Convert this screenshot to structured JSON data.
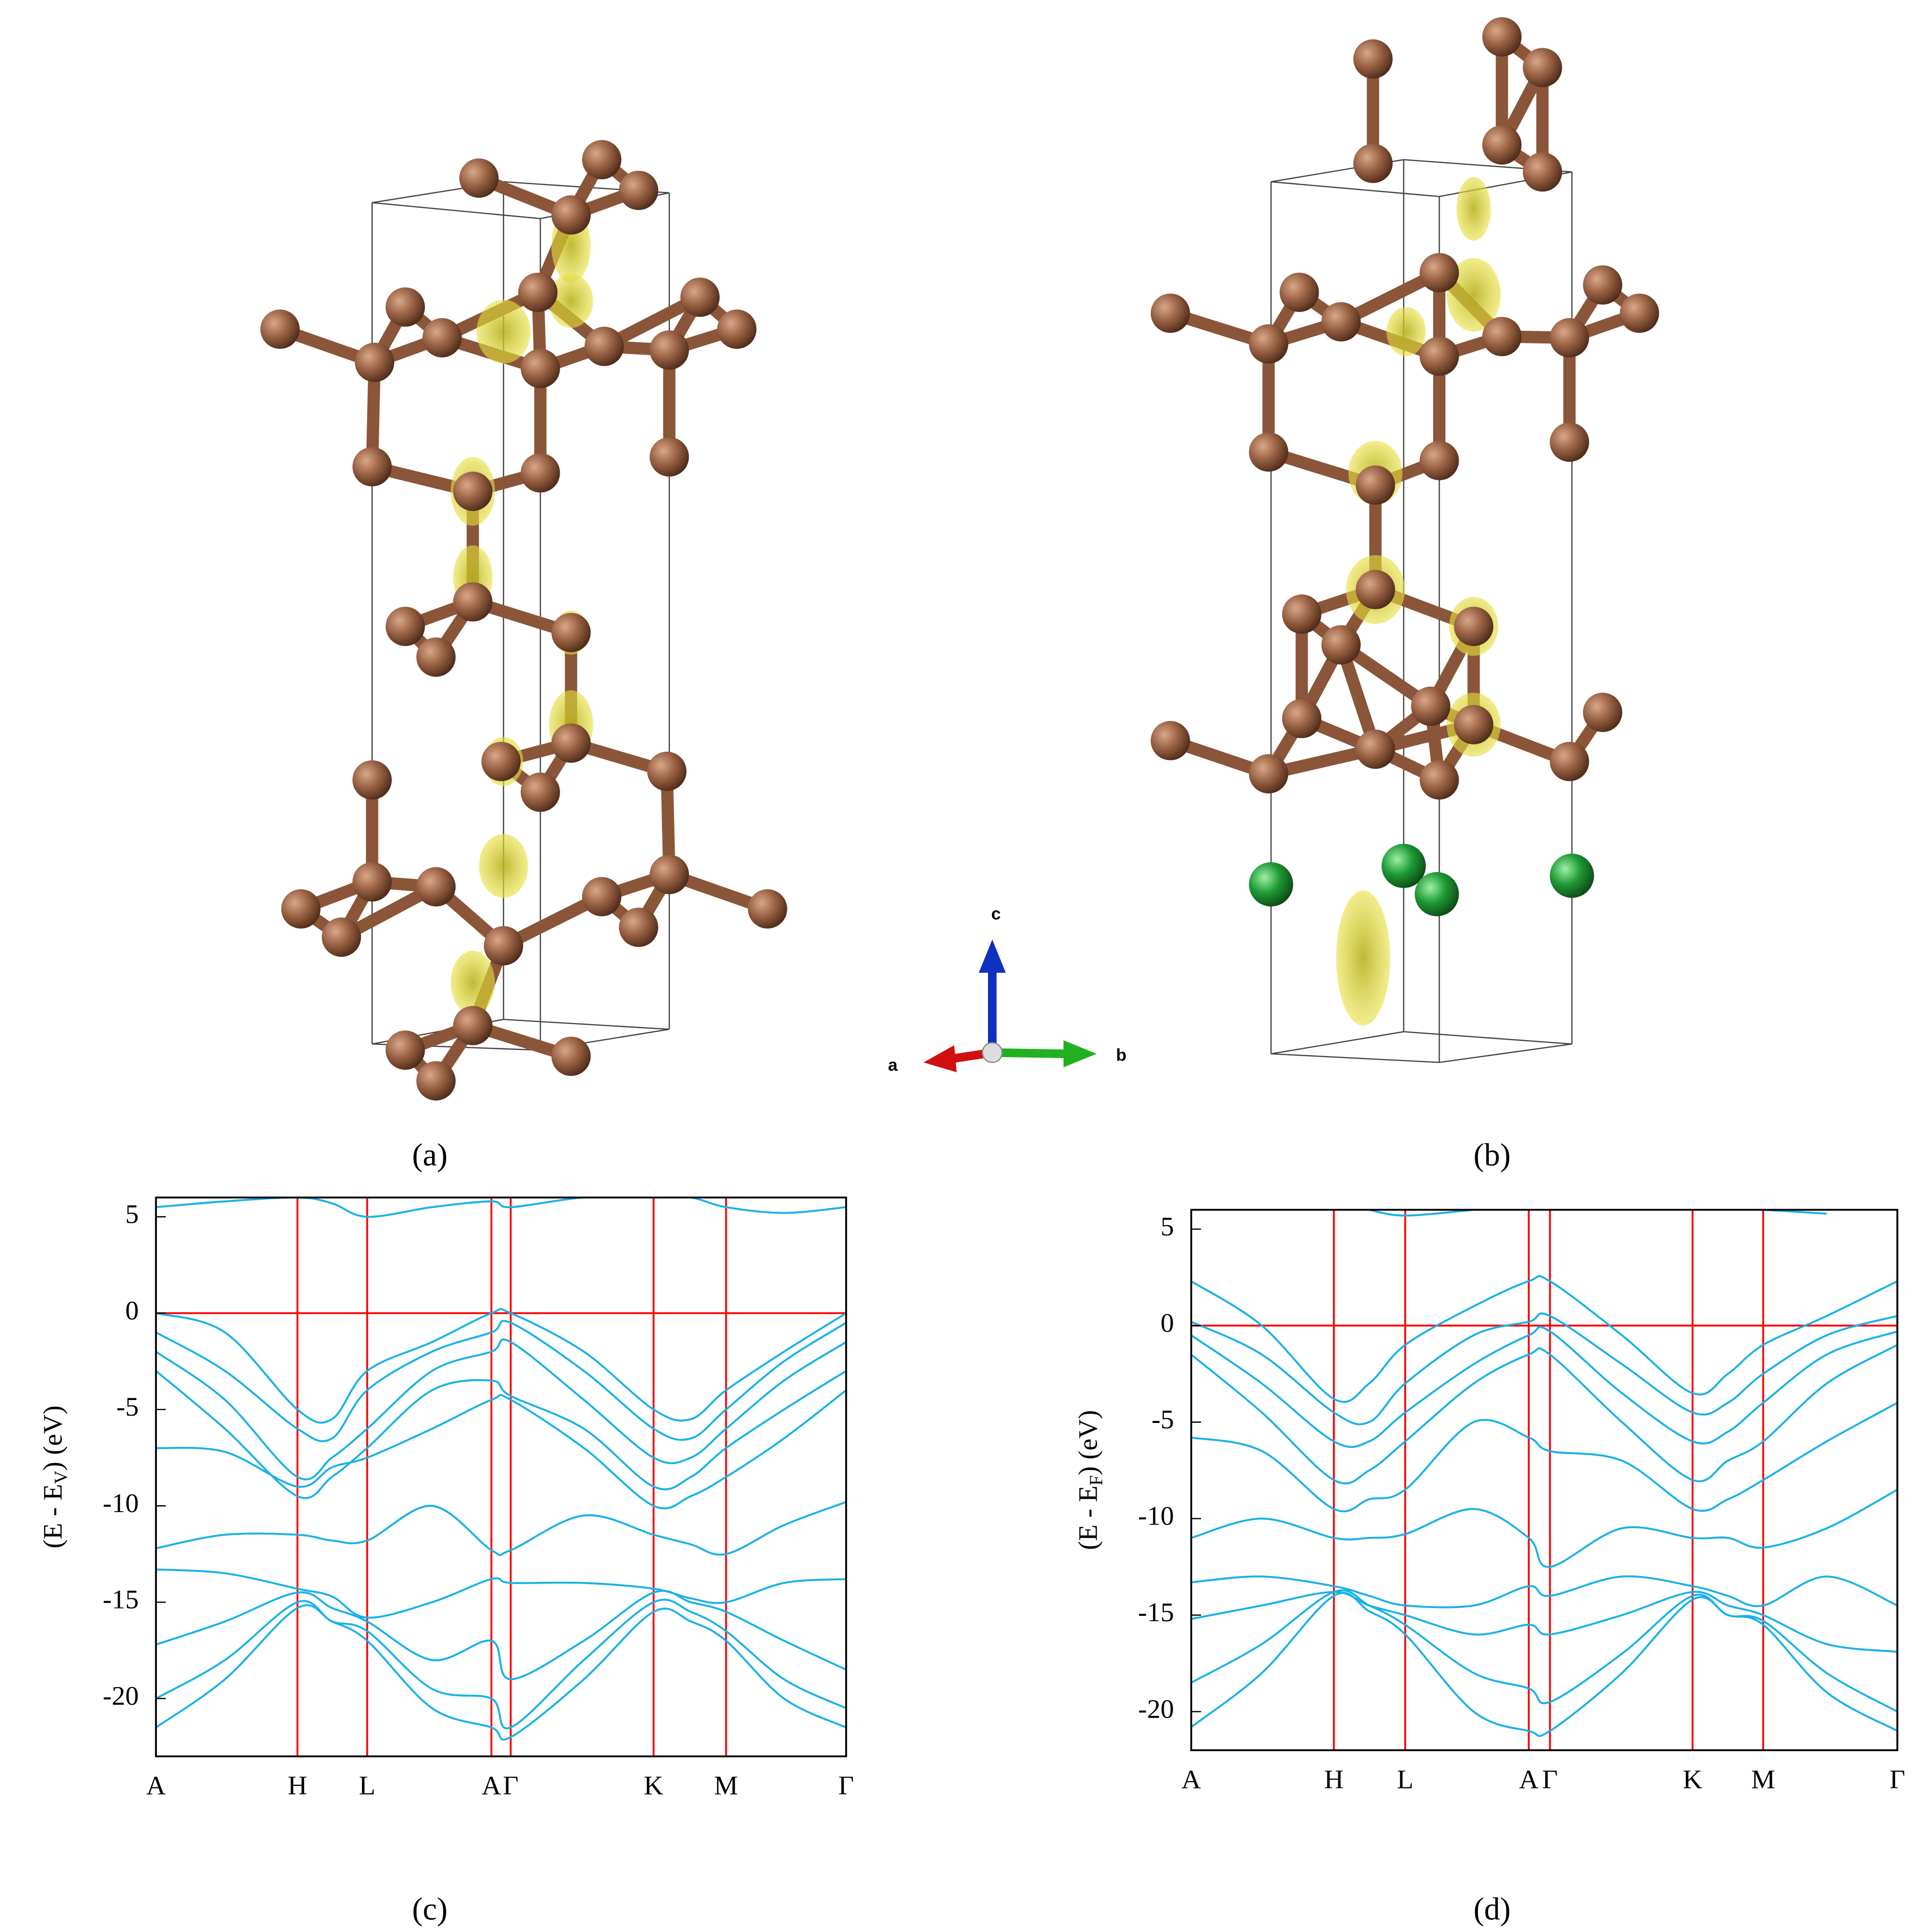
{
  "figure": {
    "structure_labels": [
      "(a)",
      "(b)"
    ],
    "axis_labels": {
      "c": "c",
      "a": "a",
      "b": "b"
    }
  },
  "chart_data": [
    {
      "type": "line",
      "caption": "(c)",
      "ylabel_parts": [
        "(E - E",
        "V",
        ") (eV)"
      ],
      "x": [
        0,
        0.1,
        0.205,
        0.255,
        0.306,
        0.4,
        0.486,
        0.514,
        0.62,
        0.721,
        0.775,
        0.826,
        0.91,
        1.0
      ],
      "xlim": [
        0,
        1
      ],
      "xticks": [
        {
          "value": 0,
          "label": "A"
        },
        {
          "value": 0.205,
          "label": "H"
        },
        {
          "value": 0.306,
          "label": "L"
        },
        {
          "value": 0.486,
          "label": "A"
        },
        {
          "value": 0.514,
          "label": "Γ"
        },
        {
          "value": 0.721,
          "label": "K"
        },
        {
          "value": 0.826,
          "label": "M"
        },
        {
          "value": 1.0,
          "label": "Γ"
        }
      ],
      "ylim": [
        -23,
        6
      ],
      "yticks": [
        5,
        0,
        -5,
        -10,
        -15,
        -20
      ],
      "grid": true,
      "grid_color": "#ff0000",
      "reference_line": 0,
      "series": [
        {
          "color": "#1ab2e6",
          "values": [
            5.5,
            5.8,
            6,
            5.7,
            5,
            5.5,
            5.8,
            5.5,
            6,
            6,
            6,
            5.5,
            5.2,
            5.5
          ]
        },
        {
          "color": "#1ab2e6",
          "values": [
            0,
            -1,
            -5,
            -5.5,
            -3,
            -1.5,
            0,
            0,
            -2,
            -5,
            -5.5,
            -4,
            -2,
            0
          ]
        },
        {
          "color": "#1ab2e6",
          "values": [
            -1,
            -3,
            -6,
            -6.5,
            -4,
            -2,
            -1,
            -0.5,
            -3,
            -6,
            -6.5,
            -5,
            -2.5,
            -0.5
          ]
        },
        {
          "color": "#1ab2e6",
          "values": [
            -2,
            -4.5,
            -8.5,
            -7.5,
            -6,
            -3,
            -2,
            -1.5,
            -4.5,
            -7.5,
            -7.5,
            -6,
            -3.5,
            -1.5
          ]
        },
        {
          "color": "#1ab2e6",
          "values": [
            -3,
            -6,
            -9.5,
            -8.5,
            -7,
            -4,
            -3.5,
            -4.3,
            -6,
            -9,
            -8.5,
            -7,
            -5,
            -3
          ]
        },
        {
          "color": "#1ab2e6",
          "values": [
            -7,
            -7.2,
            -9,
            -8,
            -7.5,
            -6,
            -4.5,
            -4.5,
            -7,
            -10,
            -9.5,
            -8.5,
            -6.5,
            -4
          ]
        },
        {
          "color": "#1ab2e6",
          "values": [
            -12.2,
            -11.5,
            -11.5,
            -11.8,
            -11.8,
            -10,
            -12.3,
            -12.3,
            -10.5,
            -11.5,
            -12,
            -12.5,
            -11,
            -9.8
          ]
        },
        {
          "color": "#1ab2e6",
          "values": [
            -13.3,
            -13.5,
            -14.3,
            -14.7,
            -15.8,
            -15,
            -13.8,
            -14,
            -14,
            -14.3,
            -14.8,
            -15,
            -14,
            -13.8
          ]
        },
        {
          "color": "#1ab2e6",
          "values": [
            -17.2,
            -16,
            -14.5,
            -15.3,
            -16,
            -18,
            -17,
            -19,
            -17,
            -14.5,
            -15,
            -15.5,
            -17,
            -18.5
          ]
        },
        {
          "color": "#1ab2e6",
          "values": [
            -20,
            -18,
            -15,
            -16,
            -16.5,
            -19.5,
            -20,
            -21.5,
            -18,
            -15,
            -15.5,
            -16.5,
            -19,
            -20.5
          ]
        },
        {
          "color": "#1ab2e6",
          "values": [
            -21.5,
            -19,
            -15.3,
            -16,
            -17,
            -20.5,
            -21.5,
            -22,
            -19,
            -15.5,
            -16,
            -17,
            -20,
            -21.5
          ]
        }
      ]
    },
    {
      "type": "line",
      "caption": "(d)",
      "ylabel_parts": [
        "(E - E",
        "F",
        ") (eV)"
      ],
      "x": [
        0,
        0.1,
        0.202,
        0.252,
        0.303,
        0.4,
        0.478,
        0.508,
        0.61,
        0.71,
        0.76,
        0.81,
        0.9,
        1.0
      ],
      "xlim": [
        0,
        1
      ],
      "xticks": [
        {
          "value": 0,
          "label": "A"
        },
        {
          "value": 0.202,
          "label": "H"
        },
        {
          "value": 0.303,
          "label": "L"
        },
        {
          "value": 0.478,
          "label": "A"
        },
        {
          "value": 0.508,
          "label": "Γ"
        },
        {
          "value": 0.71,
          "label": "K"
        },
        {
          "value": 0.81,
          "label": "M"
        },
        {
          "value": 1.0,
          "label": "Γ"
        }
      ],
      "ylim": [
        -22,
        6
      ],
      "yticks": [
        5,
        0,
        -5,
        -10,
        -15,
        -20
      ],
      "grid": true,
      "grid_color": "#ff0000",
      "reference_line": 0,
      "series": [
        {
          "color": "#1ab2e6",
          "values": [
            null,
            null,
            null,
            6,
            5.7,
            6,
            null,
            null,
            null,
            null,
            null,
            6,
            5.8,
            null
          ]
        },
        {
          "color": "#1ab2e6",
          "values": [
            2.3,
            0,
            -3.8,
            -3,
            -1,
            1,
            2.3,
            2.3,
            -0.5,
            -3.5,
            -2.5,
            -1,
            0.5,
            2.3
          ]
        },
        {
          "color": "#1ab2e6",
          "values": [
            0.2,
            -1.5,
            -4.5,
            -5,
            -3,
            -0.5,
            0.2,
            0.5,
            -2,
            -4.5,
            -4,
            -2.5,
            -0.5,
            0.5
          ]
        },
        {
          "color": "#1ab2e6",
          "values": [
            -0.5,
            -3,
            -6,
            -6,
            -4.5,
            -2,
            -0.5,
            -0.3,
            -3.5,
            -6,
            -5.5,
            -4,
            -1.5,
            -0.3
          ]
        },
        {
          "color": "#1ab2e6",
          "values": [
            -1.5,
            -4.5,
            -8,
            -7.5,
            -6,
            -3,
            -1.5,
            -1.5,
            -5,
            -8,
            -7,
            -6,
            -3,
            -1
          ]
        },
        {
          "color": "#1ab2e6",
          "values": [
            -5.8,
            -6.5,
            -9.5,
            -9,
            -8.5,
            -5,
            -5.8,
            -6.5,
            -7,
            -9.5,
            -9,
            -8,
            -6,
            -4
          ]
        },
        {
          "color": "#1ab2e6",
          "values": [
            -11,
            -10,
            -11,
            -11,
            -10.8,
            -9.5,
            -11,
            -12.5,
            -10.5,
            -11,
            -11,
            -11.5,
            -10.5,
            -8.5
          ]
        },
        {
          "color": "#1ab2e6",
          "values": [
            -13.3,
            -13,
            -13.5,
            -14,
            -14.5,
            -14.5,
            -13.5,
            -14,
            -13,
            -13.5,
            -14,
            -14.5,
            -13,
            -14.5
          ]
        },
        {
          "color": "#1ab2e6",
          "values": [
            -15.2,
            -14.5,
            -13.8,
            -14.5,
            -15,
            -16,
            -15.5,
            -16,
            -15,
            -13.8,
            -14.5,
            -15,
            -16.5,
            -16.9
          ]
        },
        {
          "color": "#1ab2e6",
          "values": [
            -18.5,
            -16.5,
            -13.8,
            -14.5,
            -15.5,
            -18,
            -18.8,
            -19.5,
            -17,
            -14,
            -15,
            -15.3,
            -18,
            -20
          ]
        },
        {
          "color": "#1ab2e6",
          "values": [
            -20.8,
            -18,
            -14,
            -14.8,
            -16,
            -20,
            -21,
            -21,
            -18,
            -14.2,
            -15,
            -15.5,
            -19,
            -21
          ]
        }
      ]
    }
  ]
}
